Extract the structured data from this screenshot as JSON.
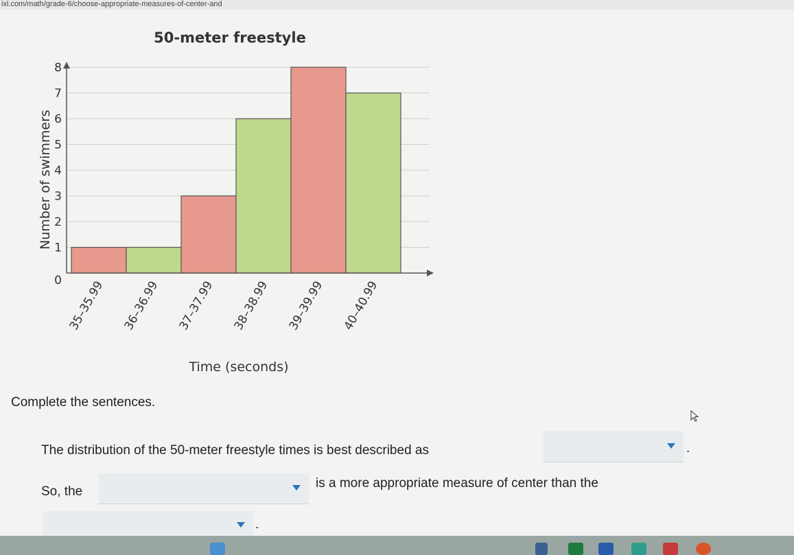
{
  "browser": {
    "url": "ixl.com/math/grade-6/choose-appropriate-measures-of-center-and"
  },
  "chart_data": {
    "type": "bar",
    "title": "50-meter freestyle",
    "xlabel": "Time (seconds)",
    "ylabel": "Number of swimmers",
    "categories": [
      "35–35.99",
      "36–36.99",
      "37–37.99",
      "38–38.99",
      "39–39.99",
      "40–40.99"
    ],
    "values": [
      1,
      1,
      3,
      6,
      8,
      7
    ],
    "yticks": [
      "0",
      "1",
      "2",
      "3",
      "4",
      "5",
      "6",
      "7",
      "8"
    ],
    "ylim": [
      0,
      8
    ],
    "colors": [
      "#e8998d",
      "#bfd88e",
      "#e8998d",
      "#bfd88e",
      "#e8998d",
      "#bfd88e"
    ],
    "grid": true
  },
  "question": {
    "instructions": "Complete the sentences.",
    "sentence1_text": "The distribution of the 50-meter freestyle times is best described as",
    "sentence2_start": "So, the",
    "sentence2_end": "is a more appropriate measure of center than the",
    "period": "."
  }
}
